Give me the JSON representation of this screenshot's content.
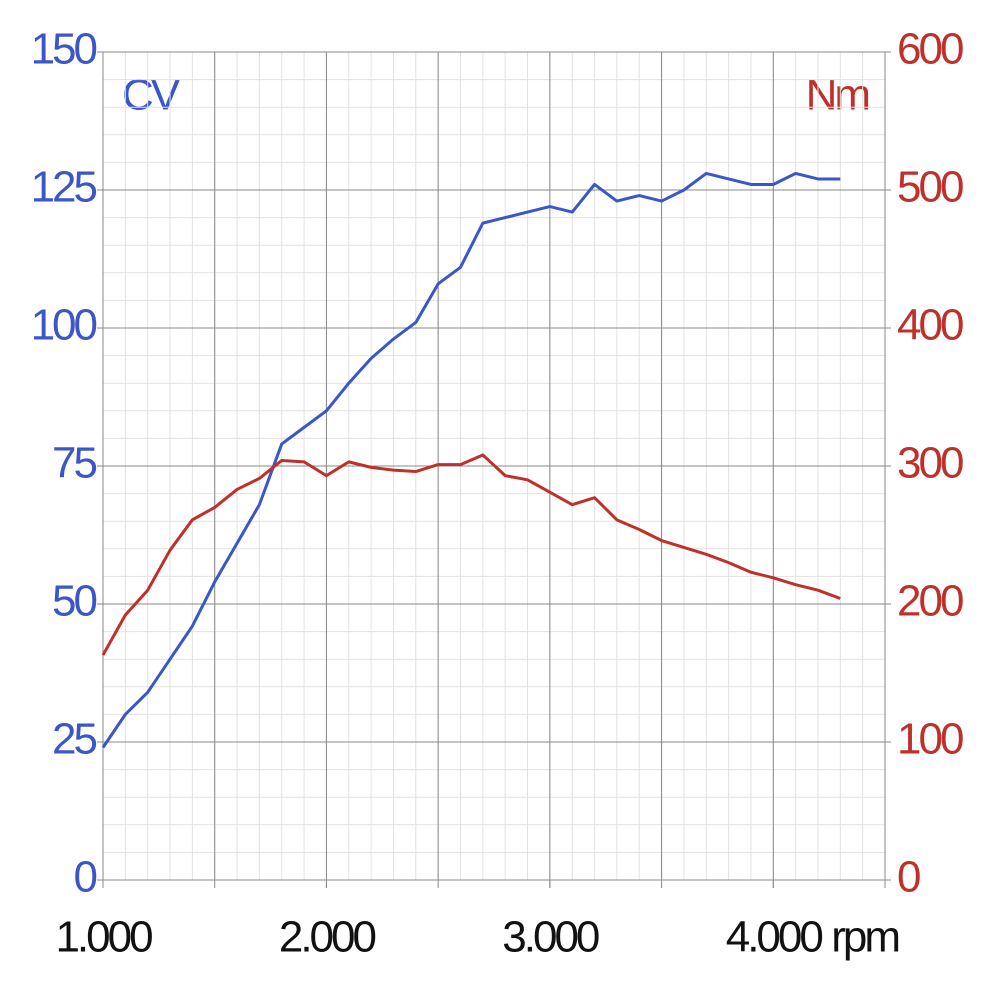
{
  "chart_data": {
    "type": "line",
    "x_label": "rpm",
    "y_label": "CV",
    "y2_label": "Nm",
    "x": [
      1000,
      1100,
      1200,
      1300,
      1400,
      1500,
      1600,
      1700,
      1800,
      1900,
      2000,
      2100,
      2200,
      2300,
      2400,
      2500,
      2600,
      2700,
      2800,
      2900,
      3000,
      3100,
      3200,
      3300,
      3400,
      3500,
      3600,
      3700,
      3800,
      3900,
      4000,
      4100,
      4200,
      4300
    ],
    "series": [
      {
        "name": "CV",
        "color": "#3a56c8",
        "axis": "y",
        "values": [
          24,
          30,
          34,
          40,
          46,
          54,
          61,
          68,
          79,
          82,
          85,
          90,
          94.5,
          98,
          101,
          108,
          111,
          119,
          120,
          121,
          122,
          121,
          126,
          123,
          124,
          123,
          125,
          128,
          127,
          126,
          126,
          128,
          127,
          127
        ]
      },
      {
        "name": "Nm",
        "color": "#c0302b",
        "axis": "y2",
        "values": [
          163,
          192,
          210,
          239,
          261,
          270,
          283,
          291,
          304,
          303,
          293,
          303,
          299,
          297,
          296,
          301,
          301,
          308,
          293,
          290,
          281,
          272,
          277,
          261,
          254,
          246,
          241,
          236,
          230,
          223,
          219,
          214,
          210,
          204
        ]
      }
    ],
    "xlim": [
      1000,
      4500
    ],
    "xticks": [
      {
        "value": 1000,
        "label": "1.000"
      },
      {
        "value": 2000,
        "label": "2.000"
      },
      {
        "value": 3000,
        "label": "3.000"
      },
      {
        "value": 4000,
        "label": "4.000"
      }
    ],
    "xgrid": [
      1000,
      1500,
      2000,
      2500,
      3000,
      3500,
      4000,
      4500
    ],
    "xminor_step": 100,
    "yminor_step": 5,
    "ylim": [
      0,
      150
    ],
    "yticks": [
      0,
      25,
      50,
      75,
      100,
      125,
      150
    ],
    "y2lim": [
      0,
      600
    ],
    "y2ticks": [
      0,
      100,
      200,
      300,
      400,
      500,
      600
    ],
    "grid": true
  }
}
